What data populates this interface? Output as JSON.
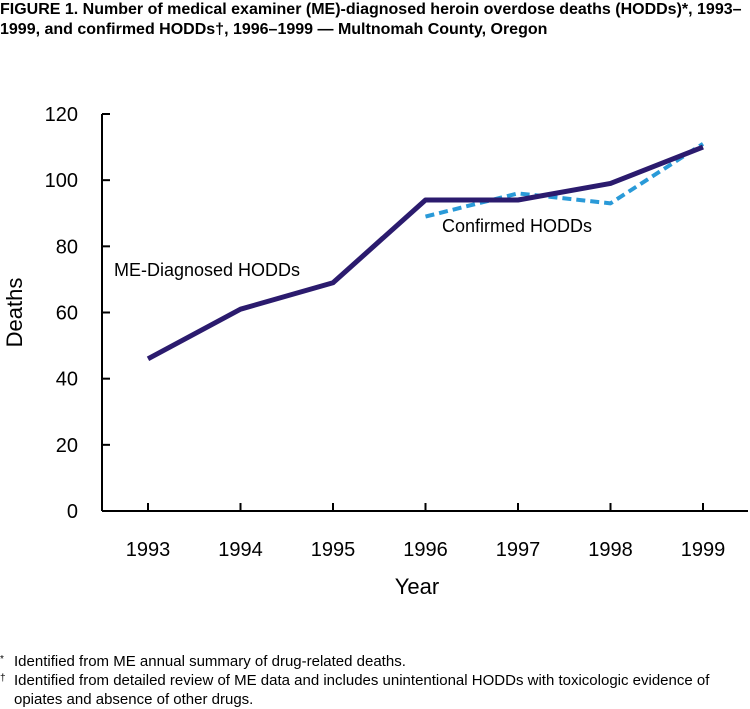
{
  "title": "FIGURE 1. Number of medical examiner (ME)-diagnosed heroin overdose deaths (HODDs)*, 1993–1999, and confirmed HODDs†,  1996–1999 — Multnomah County, Oregon",
  "footnotes": [
    {
      "marker": "*",
      "text": "Identified from ME annual summary of drug-related deaths."
    },
    {
      "marker": "†",
      "text": "Identified from detailed review of ME data and includes unintentional HODDs with toxicologic evidence of opiates and absence of other drugs."
    }
  ],
  "colors": {
    "me_series": "#2b1b6e",
    "confirmed_series": "#2a9ad8"
  },
  "chart_data": {
    "type": "line",
    "xlabel": "Year",
    "ylabel": "Deaths",
    "ylim": [
      0,
      120
    ],
    "yticks": [
      0,
      20,
      40,
      60,
      80,
      100,
      120
    ],
    "categories": [
      "1993",
      "1994",
      "1995",
      "1996",
      "1997",
      "1998",
      "1999"
    ],
    "series": [
      {
        "name": "ME-Diagnosed HODDs",
        "style": "solid",
        "x": [
          "1993",
          "1994",
          "1995",
          "1996",
          "1997",
          "1998",
          "1999"
        ],
        "values": [
          46,
          61,
          69,
          94,
          94,
          99,
          110
        ]
      },
      {
        "name": "Confirmed HODDs",
        "style": "dashed",
        "x": [
          "1996",
          "1997",
          "1998",
          "1999"
        ],
        "values": [
          89,
          96,
          93,
          111
        ]
      }
    ]
  }
}
